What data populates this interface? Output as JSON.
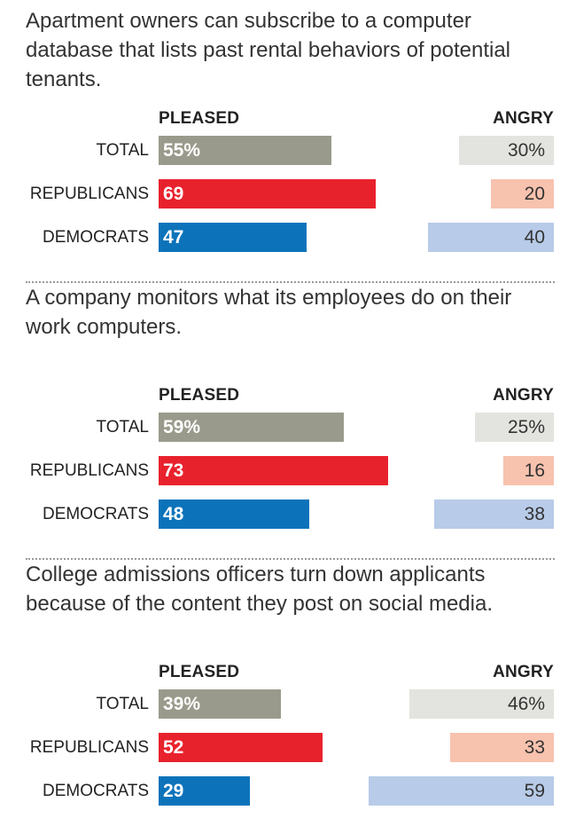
{
  "chart_data": [
    {
      "type": "bar",
      "title": "Apartment owners can subscribe to a computer database that lists past rental behaviors of potential tenants.",
      "categories": [
        "TOTAL",
        "REPUBLICANS",
        "DEMOCRATS"
      ],
      "series": [
        {
          "name": "PLEASED",
          "values": [
            55,
            69,
            47
          ],
          "labels": [
            "55%",
            "69",
            "47"
          ]
        },
        {
          "name": "ANGRY",
          "values": [
            30,
            20,
            40
          ],
          "labels": [
            "30%",
            "20",
            "40"
          ]
        }
      ]
    },
    {
      "type": "bar",
      "title": "A company monitors what its employees do on their work computers.",
      "categories": [
        "TOTAL",
        "REPUBLICANS",
        "DEMOCRATS"
      ],
      "series": [
        {
          "name": "PLEASED",
          "values": [
            59,
            73,
            48
          ],
          "labels": [
            "59%",
            "73",
            "48"
          ]
        },
        {
          "name": "ANGRY",
          "values": [
            25,
            16,
            38
          ],
          "labels": [
            "25%",
            "16",
            "38"
          ]
        }
      ]
    },
    {
      "type": "bar",
      "title": "College admissions officers turn down applicants because of the content they post on social media.",
      "categories": [
        "TOTAL",
        "REPUBLICANS",
        "DEMOCRATS"
      ],
      "series": [
        {
          "name": "PLEASED",
          "values": [
            39,
            52,
            29
          ],
          "labels": [
            "39%",
            "52",
            "29"
          ]
        },
        {
          "name": "ANGRY",
          "values": [
            46,
            33,
            59
          ],
          "labels": [
            "46%",
            "33",
            "59"
          ]
        }
      ]
    }
  ],
  "colors": {
    "pleased": [
      "#9a9a8c",
      "#e8222d",
      "#0c73ba"
    ],
    "angry": [
      "#e3e3df",
      "#f7c2ae",
      "#b8cbe8"
    ]
  }
}
